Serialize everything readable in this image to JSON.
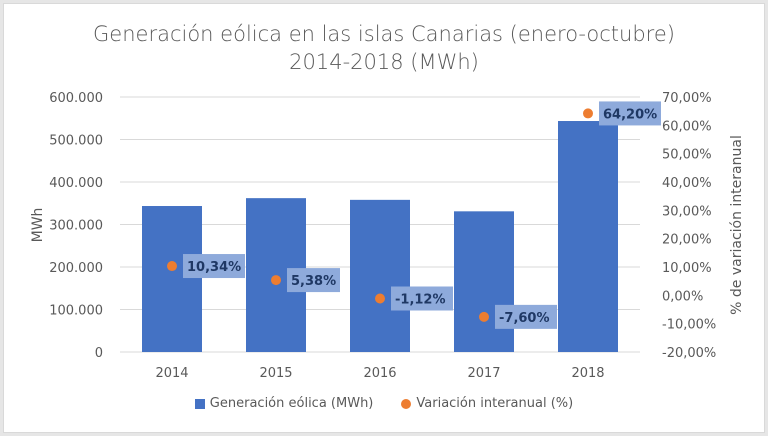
{
  "chart_data": {
    "type": "bar",
    "title": "Generación  eólica en las islas Canarias (enero-octubre)",
    "subtitle": "2014-2018 (MWh)",
    "categories": [
      "2014",
      "2015",
      "2016",
      "2017",
      "2018"
    ],
    "series": [
      {
        "name": "Generación eólica (MWh)",
        "type": "bar",
        "axis": "left",
        "color": "#4472c4",
        "values": [
          343500,
          362000,
          358000,
          331000,
          543500
        ]
      },
      {
        "name": "Variación interanual (%)",
        "type": "scatter",
        "axis": "right",
        "color": "#ed7d31",
        "values": [
          10.34,
          5.38,
          -1.12,
          -7.6,
          64.2
        ],
        "data_labels": [
          "10,34%",
          "5,38%",
          "-1,12%",
          "-7,60%",
          "64,20%"
        ]
      }
    ],
    "ylabel": "MWh",
    "ylim": [
      0,
      600000
    ],
    "yticks": [
      "0",
      "100.000",
      "200.000",
      "300.000",
      "400.000",
      "500.000",
      "600.000"
    ],
    "y2label": "% de variación interanual",
    "y2lim": [
      -20,
      70
    ],
    "y2ticks": [
      "-20,00%",
      "-10,00%",
      "0,00%",
      "10,00%",
      "20,00%",
      "30,00%",
      "40,00%",
      "50,00%",
      "60,00%",
      "70,00%"
    ],
    "grid": true,
    "legend": "bottom"
  },
  "legend": {
    "bar_label": "Generación eólica (MWh)",
    "dot_label": "Variación interanual (%)"
  }
}
